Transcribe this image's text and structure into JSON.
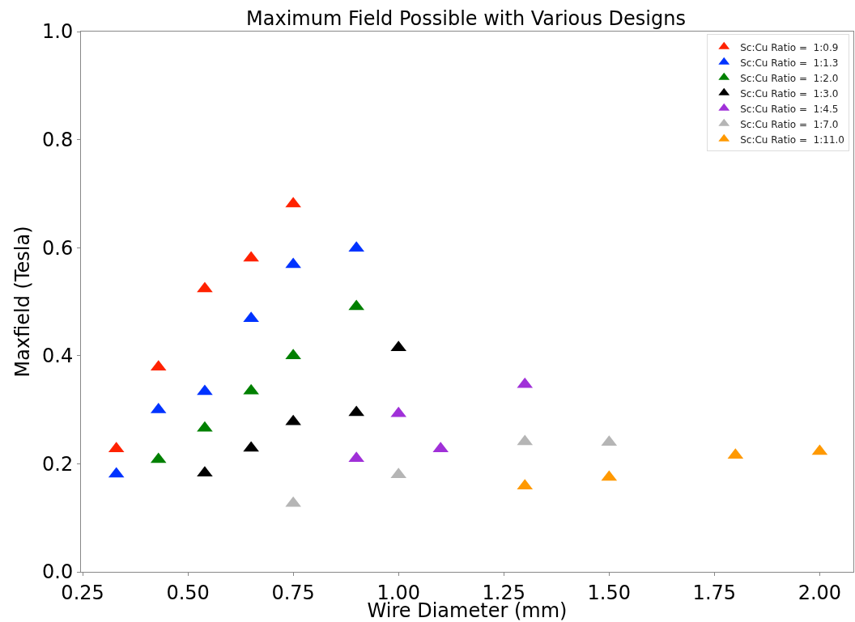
{
  "chart_data": {
    "type": "scatter",
    "title": "Maximum Field Possible with Various Designs",
    "xlabel": "Wire Diameter (mm)",
    "ylabel": "Maxfield (Tesla)",
    "marker": "triangle",
    "grid": false,
    "legend": "top right",
    "xlim": [
      0.246,
      2.08
    ],
    "ylim": [
      0,
      1
    ],
    "xticks": [
      {
        "value": 0.25,
        "label": "0.25"
      },
      {
        "value": 0.5,
        "label": "0.50"
      },
      {
        "value": 0.75,
        "label": "0.75"
      },
      {
        "value": 1,
        "label": "1.00"
      },
      {
        "value": 1.25,
        "label": "1.25"
      },
      {
        "value": 1.5,
        "label": "1.50"
      },
      {
        "value": 1.75,
        "label": "1.75"
      },
      {
        "value": 2,
        "label": "2.00"
      }
    ],
    "yticks": [
      {
        "value": 0,
        "label": "0.0"
      },
      {
        "value": 0.2,
        "label": "0.2"
      },
      {
        "value": 0.4,
        "label": "0.4"
      },
      {
        "value": 0.6,
        "label": "0.6"
      },
      {
        "value": 0.8,
        "label": "0.8"
      },
      {
        "value": 1,
        "label": "1.0"
      }
    ],
    "series": [
      {
        "name": "Sc:Cu Ratio =  1:0.9",
        "color": "#ff2200",
        "x": [
          0.33,
          0.43,
          0.54,
          0.65,
          0.75
        ],
        "values": [
          0.228,
          0.379,
          0.524,
          0.581,
          0.681
        ]
      },
      {
        "name": "Sc:Cu Ratio =  1:1.3",
        "color": "#0033ff",
        "x": [
          0.33,
          0.43,
          0.54,
          0.65,
          0.75,
          0.9
        ],
        "values": [
          0.181,
          0.3,
          0.334,
          0.469,
          0.569,
          0.599
        ]
      },
      {
        "name": "Sc:Cu Ratio =  1:2.0",
        "color": "#008000",
        "x": [
          0.43,
          0.54,
          0.65,
          0.75,
          0.9
        ],
        "values": [
          0.208,
          0.266,
          0.335,
          0.4,
          0.491
        ]
      },
      {
        "name": "Sc:Cu Ratio =  1:3.0",
        "color": "#000000",
        "x": [
          0.54,
          0.65,
          0.75,
          0.9,
          1.0
        ],
        "values": [
          0.183,
          0.229,
          0.278,
          0.295,
          0.415
        ]
      },
      {
        "name": "Sc:Cu Ratio =  1:4.5",
        "color": "#a030d8",
        "x": [
          0.9,
          1.0,
          1.1,
          1.3
        ],
        "values": [
          0.21,
          0.293,
          0.228,
          0.347
        ]
      },
      {
        "name": "Sc:Cu Ratio =  1:7.0",
        "color": "#b5b5b5",
        "x": [
          0.75,
          1.0,
          1.3,
          1.5
        ],
        "values": [
          0.127,
          0.18,
          0.241,
          0.24
        ]
      },
      {
        "name": "Sc:Cu Ratio =  1:11.0",
        "color": "#ff9900",
        "x": [
          1.3,
          1.5,
          1.8,
          2.0
        ],
        "values": [
          0.159,
          0.175,
          0.216,
          0.223
        ]
      }
    ]
  }
}
